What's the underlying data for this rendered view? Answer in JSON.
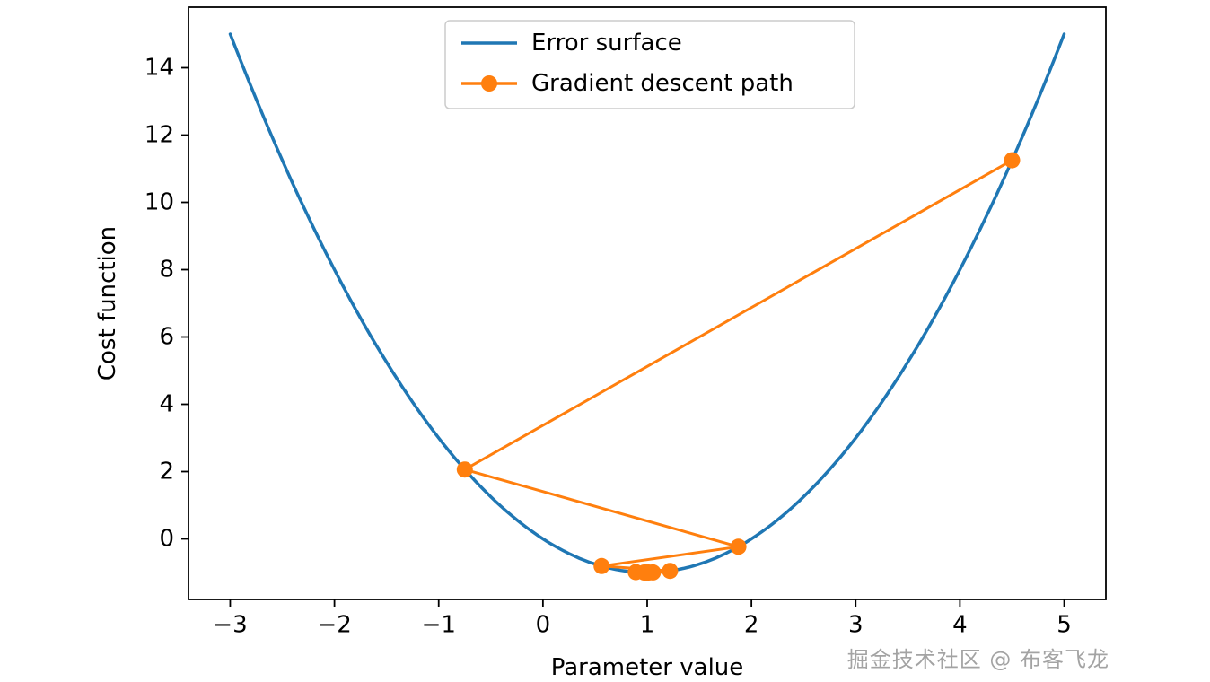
{
  "figure": {
    "background": "#ffffff"
  },
  "watermark": {
    "text": "掘金技术社区 @ 布客飞龙",
    "color": "#a3a3a3"
  },
  "chart_data": {
    "type": "line",
    "xlabel": "Parameter value",
    "ylabel": "Cost function",
    "xlim": [
      -3.4,
      5.4
    ],
    "ylim": [
      -1.8,
      15.8
    ],
    "xticks": [
      -3,
      -2,
      -1,
      0,
      1,
      2,
      3,
      4,
      5
    ],
    "yticks": [
      0,
      2,
      4,
      6,
      8,
      10,
      12,
      14
    ],
    "grid": false,
    "axis_color": "#000000",
    "legend": {
      "position": "upper center",
      "border_color": "#cccccc",
      "background": "#ffffff",
      "entries": [
        {
          "label": "Error surface",
          "color": "#1f77b4",
          "marker": "none"
        },
        {
          "label": "Gradient descent path",
          "color": "#ff7f0e",
          "marker": "circle"
        }
      ]
    },
    "series": [
      {
        "name": "Error surface",
        "type": "curve",
        "color": "#1f77b4",
        "linewidth": 3.5,
        "equation": "cost = (parameter - 1)^2 - 1",
        "quadratic": {
          "vertex_x": 1,
          "vertex_y": -1,
          "coefficient": 1
        },
        "x_range": [
          -3,
          5
        ]
      },
      {
        "name": "Gradient descent path",
        "type": "line+marker",
        "color": "#ff7f0e",
        "linewidth": 3,
        "marker_size": 9,
        "x": [
          4.5,
          -0.75,
          1.875,
          0.5625,
          1.21875,
          0.890625,
          1.0546875,
          0.97265625,
          1.013672,
          0.993164
        ],
        "y": [
          11.25,
          2.0625,
          -0.234375,
          -0.808594,
          -0.952148,
          -0.988037,
          -0.997009,
          -0.999252,
          -0.999813,
          -0.999953
        ]
      }
    ]
  }
}
